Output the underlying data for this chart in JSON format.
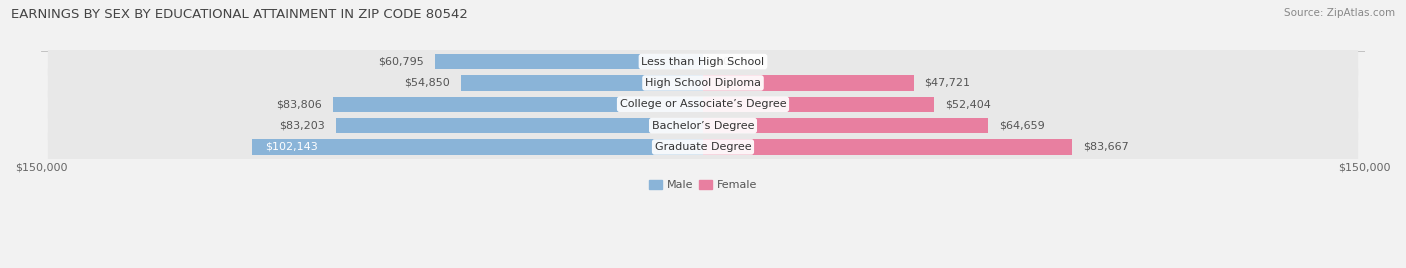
{
  "title": "EARNINGS BY SEX BY EDUCATIONAL ATTAINMENT IN ZIP CODE 80542",
  "source": "Source: ZipAtlas.com",
  "categories": [
    "Less than High School",
    "High School Diploma",
    "College or Associate’s Degree",
    "Bachelor’s Degree",
    "Graduate Degree"
  ],
  "male_values": [
    60795,
    54850,
    83806,
    83203,
    102143
  ],
  "female_values": [
    0,
    47721,
    52404,
    64659,
    83667
  ],
  "male_color": "#8ab4d8",
  "female_color": "#e87fa0",
  "male_label": "Male",
  "female_label": "Female",
  "xlim": 150000,
  "bar_height": 0.72,
  "row_bg_color": "#e8e8e8",
  "bg_color": "#f2f2f2",
  "title_fontsize": 9.5,
  "cat_fontsize": 8,
  "value_fontsize": 8,
  "source_fontsize": 7.5
}
